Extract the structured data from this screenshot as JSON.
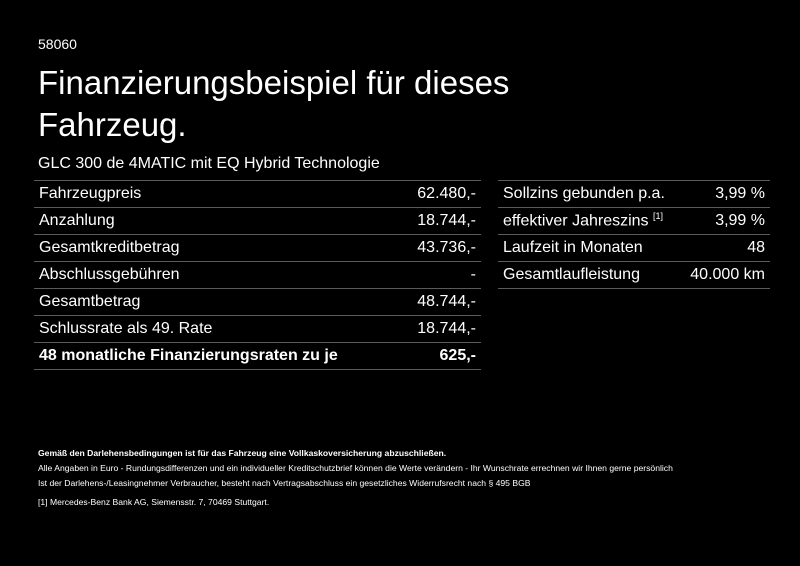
{
  "code": "58060",
  "title_line1": "Finanzierungsbeispiel für dieses",
  "title_line2": "Fahrzeug.",
  "model": "GLC 300 de 4MATIC mit EQ Hybrid Technologie",
  "left_rows": [
    {
      "label": "Fahrzeugpreis",
      "value": "62.480,-"
    },
    {
      "label": "Anzahlung",
      "value": "18.744,-"
    },
    {
      "label": "Gesamtkreditbetrag",
      "value": "43.736,-"
    },
    {
      "label": "Abschlussgebühren",
      "value": "-"
    },
    {
      "label": "Gesamtbetrag",
      "value": "48.744,-"
    },
    {
      "label": "Schlussrate als 49. Rate",
      "value": "18.744,-"
    },
    {
      "label": "48 monatliche Finanzierungsraten zu je",
      "value": "625,-"
    }
  ],
  "right_rows": [
    {
      "label": "Sollzins gebunden p.a.",
      "value": "3,99 %"
    },
    {
      "label": "effektiver Jahreszins",
      "sup": "[1]",
      "value": "3,99 %"
    },
    {
      "label": "Laufzeit in Monaten",
      "value": "48"
    },
    {
      "label": "Gesamtlaufleistung",
      "value": "40.000 km"
    }
  ],
  "footer": {
    "bold": "Gemäß den Darlehensbedingungen ist für das Fahrzeug eine Vollkaskoversicherung abzuschließen.",
    "line1": "Alle Angaben in Euro - Rundungsdifferenzen und ein individueller Kreditschutzbrief können die Werte verändern - Ihr Wunschrate errechnen wir Ihnen gerne persönlich",
    "line2": "Ist der Darlehens-/Leasingnehmer Verbraucher, besteht nach Vertragsabschluss ein gesetzliches Widerrufsrecht nach § 495 BGB",
    "note_mark": "[1]",
    "note": "Mercedes-Benz Bank AG, Siemensstr. 7, 70469 Stuttgart."
  }
}
